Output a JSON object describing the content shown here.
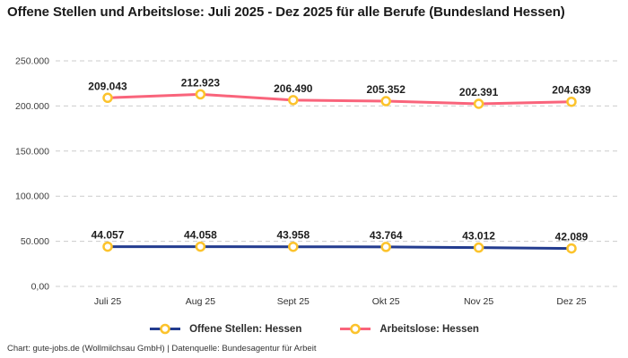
{
  "title": "Offene Stellen und Arbeitslose: Juli 2025 - Dez 2025 für alle Berufe (Bundesland Hessen)",
  "footer": "Chart: gute-jobs.de (Wollmilchsau GmbH) | Datenquelle: Bundesagentur für Arbeit",
  "colors": {
    "grid": "#cccccc",
    "marker_ring": "#fcc32c",
    "marker_fill": "#ffffff",
    "series_blue": "#233c8f",
    "series_pink": "#f9647b",
    "title_text": "#1a1a1a",
    "axis_text": "#3d3d3d",
    "label_text": "#1d1d1d"
  },
  "legend": {
    "items": [
      {
        "label": "Offene Stellen: Hessen"
      },
      {
        "label": "Arbeitslose: Hessen"
      }
    ]
  },
  "chart_data": {
    "type": "line",
    "categories": [
      "Juli 25",
      "Aug 25",
      "Sept 25",
      "Okt 25",
      "Nov 25",
      "Dez 25"
    ],
    "series": [
      {
        "name": "Offene Stellen: Hessen",
        "color": "#233c8f",
        "values": [
          44057,
          44058,
          43958,
          43764,
          43012,
          42089
        ],
        "point_labels": [
          "44.057",
          "44.058",
          "43.958",
          "43.764",
          "43.012",
          "42.089"
        ]
      },
      {
        "name": "Arbeitslose: Hessen",
        "color": "#f9647b",
        "values": [
          209043,
          212923,
          206490,
          205352,
          202391,
          204639
        ],
        "point_labels": [
          "209.043",
          "212.923",
          "206.490",
          "205.352",
          "202.391",
          "204.639"
        ]
      }
    ],
    "ylim": [
      0,
      250000
    ],
    "yticks": [
      0,
      50000,
      100000,
      150000,
      200000,
      250000
    ],
    "ytick_labels": [
      "0,00",
      "50.000",
      "100.000",
      "150.000",
      "200.000",
      "250.000"
    ],
    "grid": "dashed horizontal gridlines",
    "legend_position": "bottom",
    "marker": "circle, white fill, gold ring"
  }
}
